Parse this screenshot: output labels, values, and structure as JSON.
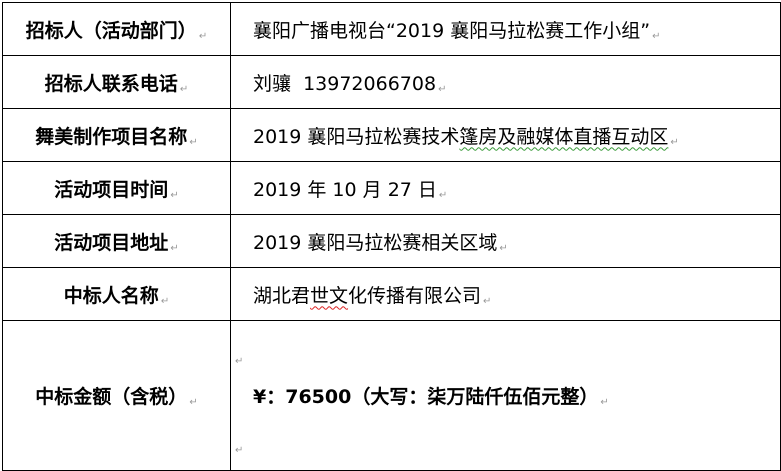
{
  "rows": [
    {
      "label": "招标人（活动部门）",
      "value": "襄阳广播电视台“2019 襄阳马拉松赛工作小组”"
    },
    {
      "label": "招标人联系电话",
      "value": "刘骧  13972066708"
    },
    {
      "label": "舞美制作项目名称",
      "value_plain": "2019 襄阳马拉松赛技术",
      "value_flagged": "篷房及融媒体直播互动区"
    },
    {
      "label": "活动项目时间",
      "value": "2019 年 10 月 27 日"
    },
    {
      "label": "活动项目地址",
      "value": "2019 襄阳马拉松赛相关区域"
    },
    {
      "label": "中标人名称",
      "value_a": "湖北君",
      "value_flagged": "世文",
      "value_b": "化传播有限公司"
    },
    {
      "label": "中标金额（含税）",
      "value": "¥：76500（大写：柒万陆仟伍佰元整）"
    }
  ],
  "icons": {
    "paragraph_mark": "return-arrow-icon"
  },
  "colors": {
    "spellcheck_grammar": "#3a9a3a",
    "spellcheck_spelling": "#d22222"
  }
}
